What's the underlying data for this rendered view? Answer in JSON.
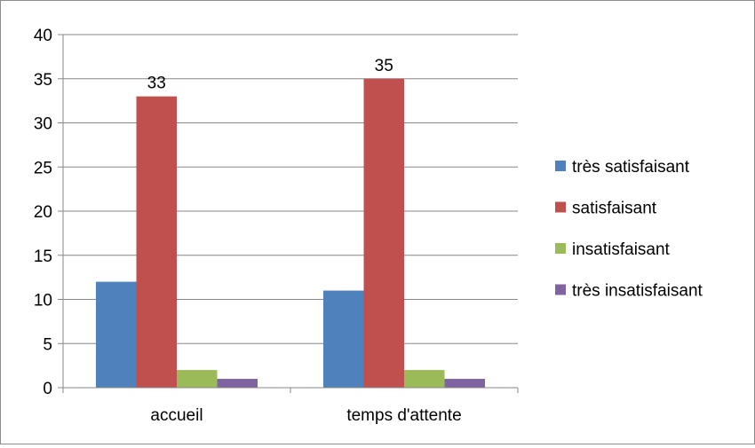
{
  "chart_data": {
    "type": "bar",
    "categories": [
      "accueil",
      "temps d'attente"
    ],
    "series": [
      {
        "name": "très satisfaisant",
        "values": [
          12,
          11
        ],
        "color": "#4f81bd"
      },
      {
        "name": "satisfaisant",
        "values": [
          33,
          35
        ],
        "color": "#c0504d"
      },
      {
        "name": "insatisfaisant",
        "values": [
          2,
          2
        ],
        "color": "#9bbb59"
      },
      {
        "name": "très insatisfaisant",
        "values": [
          1,
          1
        ],
        "color": "#8064a2"
      }
    ],
    "data_labels": [
      {
        "series": 1,
        "category": 0,
        "text": "33"
      },
      {
        "series": 1,
        "category": 1,
        "text": "35"
      }
    ],
    "y_ticks": [
      "0",
      "5",
      "10",
      "15",
      "20",
      "25",
      "30",
      "35",
      "40"
    ],
    "ylim": [
      0,
      40
    ],
    "grid": true,
    "legend_position": "right",
    "title": "",
    "xlabel": "",
    "ylabel": ""
  }
}
